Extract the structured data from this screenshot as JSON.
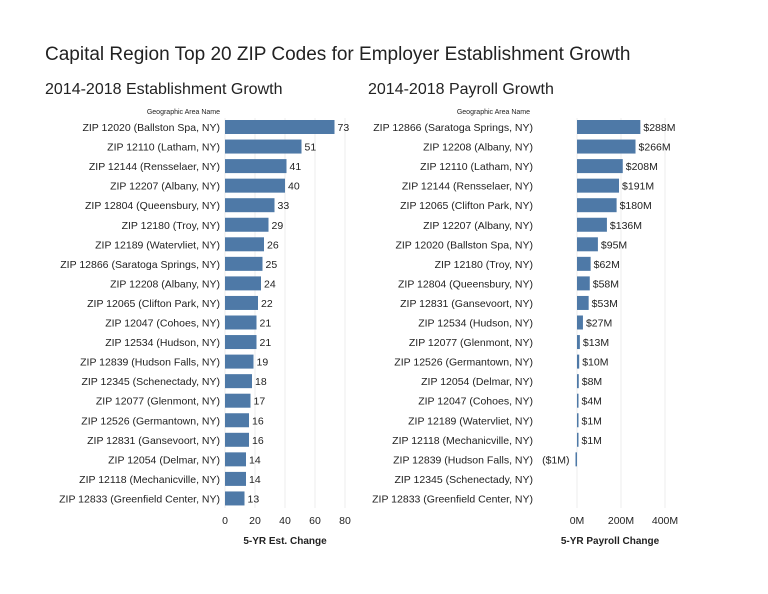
{
  "title": "Capital Region Top 20 ZIP Codes for Employer Establishment Growth",
  "colors": {
    "bar": "#4e79a7",
    "grid": "#eeeeee"
  },
  "chart_data": [
    {
      "type": "bar",
      "orientation": "horizontal",
      "title": "2014-2018 Establishment Growth",
      "category_header": "Geographic Area Name",
      "xlabel": "5-YR Est. Change",
      "xlim": [
        0,
        80
      ],
      "xticks": [
        "0",
        "20",
        "40",
        "60",
        "80"
      ],
      "xtick_values": [
        0,
        20,
        40,
        60,
        80
      ],
      "categories": [
        "ZIP 12020 (Ballston Spa, NY)",
        "ZIP 12110 (Latham, NY)",
        "ZIP 12144 (Rensselaer, NY)",
        "ZIP 12207 (Albany, NY)",
        "ZIP 12804 (Queensbury, NY)",
        "ZIP 12180 (Troy, NY)",
        "ZIP 12189 (Watervliet, NY)",
        "ZIP 12866 (Saratoga Springs, NY)",
        "ZIP 12208 (Albany, NY)",
        "ZIP 12065 (Clifton Park, NY)",
        "ZIP 12047 (Cohoes, NY)",
        "ZIP 12534 (Hudson, NY)",
        "ZIP 12839 (Hudson Falls, NY)",
        "ZIP 12345 (Schenectady, NY)",
        "ZIP 12077 (Glenmont, NY)",
        "ZIP 12526 (Germantown, NY)",
        "ZIP 12831 (Gansevoort, NY)",
        "ZIP 12054 (Delmar, NY)",
        "ZIP 12118 (Mechanicville, NY)",
        "ZIP 12833 (Greenfield Center, NY)"
      ],
      "values": [
        73,
        51,
        41,
        40,
        33,
        29,
        26,
        25,
        24,
        22,
        21,
        21,
        19,
        18,
        17,
        16,
        16,
        14,
        14,
        13
      ],
      "labels": [
        "73",
        "51",
        "41",
        "40",
        "33",
        "29",
        "26",
        "25",
        "24",
        "22",
        "21",
        "21",
        "19",
        "18",
        "17",
        "16",
        "16",
        "14",
        "14",
        "13"
      ]
    },
    {
      "type": "bar",
      "orientation": "horizontal",
      "title": "2014-2018 Payroll Growth",
      "category_header": "Geographic Area Name",
      "xlabel": "5-YR Payroll Change",
      "xlim": [
        -180,
        450
      ],
      "xticks": [
        "0M",
        "200M",
        "400M"
      ],
      "xtick_values": [
        0,
        200,
        400
      ],
      "categories": [
        "ZIP 12866 (Saratoga Springs, NY)",
        "ZIP 12208 (Albany, NY)",
        "ZIP 12110 (Latham, NY)",
        "ZIP 12144 (Rensselaer, NY)",
        "ZIP 12065 (Clifton Park, NY)",
        "ZIP 12207 (Albany, NY)",
        "ZIP 12020 (Ballston Spa, NY)",
        "ZIP 12180 (Troy, NY)",
        "ZIP 12804 (Queensbury, NY)",
        "ZIP 12831 (Gansevoort, NY)",
        "ZIP 12534 (Hudson, NY)",
        "ZIP 12077 (Glenmont, NY)",
        "ZIP 12526 (Germantown, NY)",
        "ZIP 12054 (Delmar, NY)",
        "ZIP 12047 (Cohoes, NY)",
        "ZIP 12189 (Watervliet, NY)",
        "ZIP 12118 (Mechanicville, NY)",
        "ZIP 12839 (Hudson Falls, NY)",
        "ZIP 12345 (Schenectady, NY)",
        "ZIP 12833 (Greenfield Center, NY)"
      ],
      "values": [
        288,
        266,
        208,
        191,
        180,
        136,
        95,
        62,
        58,
        53,
        27,
        13,
        10,
        8,
        4,
        1,
        1,
        -1,
        null,
        null
      ],
      "labels": [
        "$288M",
        "$266M",
        "$208M",
        "$191M",
        "$180M",
        "$136M",
        "$95M",
        "$62M",
        "$58M",
        "$53M",
        "$27M",
        "$13M",
        "$10M",
        "$8M",
        "$4M",
        "$1M",
        "$1M",
        "($1M)",
        "",
        ""
      ]
    }
  ]
}
